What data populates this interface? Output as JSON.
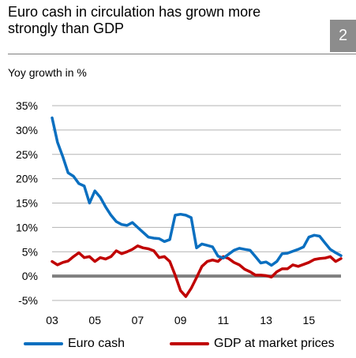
{
  "header": {
    "title": "Euro cash in circulation has grown more strongly than GDP",
    "badge": "2",
    "subtitle": "Yoy growth in %"
  },
  "chart_data": {
    "type": "line",
    "title": "Euro cash in circulation has grown more strongly than GDP",
    "ylabel": "Yoy growth in %",
    "ylim": [
      -5,
      35
    ],
    "xlim": [
      2003,
      2016.5
    ],
    "yticks": [
      35,
      30,
      25,
      20,
      15,
      10,
      5,
      0,
      -5
    ],
    "ytick_labels": [
      "35%",
      "30%",
      "25%",
      "20%",
      "15%",
      "10%",
      "5%",
      "0%",
      "-5%"
    ],
    "xticks": [
      2003,
      2005,
      2007,
      2009,
      2011,
      2013,
      2015
    ],
    "xtick_labels": [
      "03",
      "05",
      "07",
      "09",
      "11",
      "13",
      "15"
    ],
    "grid": true,
    "legend_position": "bottom",
    "zero_line_color": "#7f7f7f",
    "series": [
      {
        "name": "Euro cash",
        "color": "#0a6fc0",
        "x": [
          2003.0,
          2003.25,
          2003.5,
          2003.75,
          2004.0,
          2004.25,
          2004.5,
          2004.75,
          2005.0,
          2005.25,
          2005.5,
          2005.75,
          2006.0,
          2006.25,
          2006.5,
          2006.75,
          2007.0,
          2007.25,
          2007.5,
          2007.75,
          2008.0,
          2008.25,
          2008.5,
          2008.75,
          2009.0,
          2009.25,
          2009.5,
          2009.75,
          2010.0,
          2010.25,
          2010.5,
          2010.75,
          2011.0,
          2011.25,
          2011.5,
          2011.75,
          2012.0,
          2012.25,
          2012.5,
          2012.75,
          2013.0,
          2013.25,
          2013.5,
          2013.75,
          2014.0,
          2014.25,
          2014.5,
          2014.75,
          2015.0,
          2015.25,
          2015.5,
          2015.75,
          2016.0,
          2016.25,
          2016.5
        ],
        "y": [
          32.5,
          27.5,
          24.5,
          21.2,
          20.5,
          19.0,
          18.5,
          15.0,
          17.5,
          16.2,
          14.2,
          12.5,
          11.2,
          10.6,
          10.4,
          11.0,
          10.0,
          9.0,
          8.0,
          7.8,
          7.7,
          7.1,
          7.5,
          12.5,
          12.7,
          12.5,
          12.0,
          5.8,
          6.6,
          6.3,
          6.0,
          4.1,
          3.7,
          4.5,
          5.3,
          5.7,
          5.5,
          5.3,
          4.0,
          2.7,
          2.9,
          2.2,
          3.0,
          4.6,
          4.7,
          5.1,
          5.5,
          6.0,
          8.0,
          8.4,
          8.2,
          6.8,
          5.5,
          4.8,
          4.2
        ]
      },
      {
        "name": "GDP at market prices",
        "color": "#c00000",
        "x": [
          2003.0,
          2003.25,
          2003.5,
          2003.75,
          2004.0,
          2004.25,
          2004.5,
          2004.75,
          2005.0,
          2005.25,
          2005.5,
          2005.75,
          2006.0,
          2006.25,
          2006.5,
          2006.75,
          2007.0,
          2007.25,
          2007.5,
          2007.75,
          2008.0,
          2008.25,
          2008.5,
          2008.75,
          2009.0,
          2009.25,
          2009.5,
          2009.75,
          2010.0,
          2010.25,
          2010.5,
          2010.75,
          2011.0,
          2011.25,
          2011.5,
          2011.75,
          2012.0,
          2012.25,
          2012.5,
          2012.75,
          2013.0,
          2013.25,
          2013.5,
          2013.75,
          2014.0,
          2014.25,
          2014.5,
          2014.75,
          2015.0,
          2015.25,
          2015.5,
          2015.75,
          2016.0,
          2016.25,
          2016.5
        ],
        "y": [
          3.0,
          2.3,
          2.8,
          3.1,
          4.0,
          4.8,
          3.8,
          4.0,
          3.0,
          3.8,
          3.5,
          4.0,
          5.2,
          4.6,
          5.0,
          5.5,
          6.2,
          5.8,
          5.6,
          5.2,
          3.8,
          4.0,
          3.0,
          0.2,
          -3.0,
          -4.2,
          -2.5,
          -0.3,
          2.0,
          3.0,
          3.3,
          3.0,
          4.0,
          3.6,
          2.8,
          2.3,
          1.4,
          0.9,
          0.2,
          0.2,
          0.1,
          -0.2,
          0.9,
          1.5,
          1.5,
          2.3,
          2.0,
          2.4,
          2.8,
          3.4,
          3.6,
          3.7,
          4.0,
          3.0,
          3.6
        ]
      }
    ]
  }
}
